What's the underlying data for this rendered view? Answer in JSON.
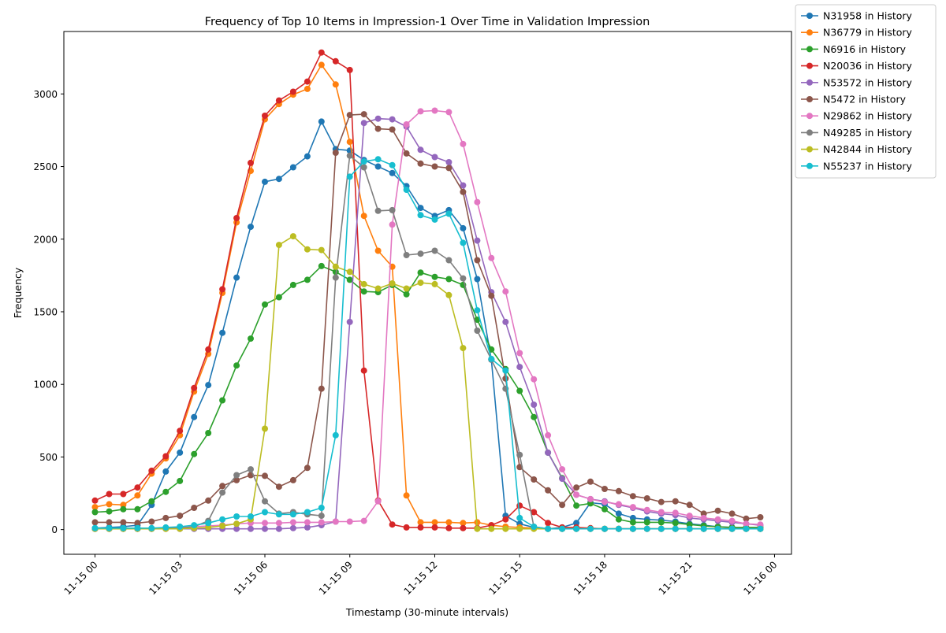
{
  "chart_data": {
    "type": "line",
    "title": "Frequency of Top 10 Items in Impression-1 Over Time in Validation Impression",
    "xlabel": "Timestamp (30-minute intervals)",
    "ylabel": "Frequency",
    "x_ticks": [
      "11-15 00",
      "11-15 03",
      "11-15 06",
      "11-15 09",
      "11-15 12",
      "11-15 15",
      "11-15 18",
      "11-15 21",
      "11-16 00"
    ],
    "x_tick_hours": [
      0,
      3,
      6,
      9,
      12,
      15,
      18,
      21,
      24
    ],
    "xlim_hours": [
      -1.1,
      24.6
    ],
    "y_ticks": [
      0,
      500,
      1000,
      1500,
      2000,
      2500,
      3000
    ],
    "ylim": [
      -170,
      3430
    ],
    "x_hours": [
      0,
      0.5,
      1,
      1.5,
      2,
      2.5,
      3,
      3.5,
      4,
      4.5,
      5,
      5.5,
      6,
      6.5,
      7,
      7.5,
      8,
      8.5,
      9,
      9.5,
      10,
      10.5,
      11,
      11.5,
      12,
      12.5,
      13,
      13.5,
      14,
      14.5,
      15,
      15.5,
      16,
      16.5,
      17,
      17.5,
      18,
      18.5,
      19,
      19.5,
      20,
      20.5,
      21,
      21.5,
      22,
      22.5,
      23,
      23.5
    ],
    "legend_position": "outside-top-right",
    "series": [
      {
        "name": "N31958 in History",
        "color": "#1f77b4",
        "values": [
          10,
          15,
          20,
          30,
          170,
          400,
          530,
          775,
          995,
          1355,
          1735,
          2085,
          2395,
          2415,
          2495,
          2570,
          2810,
          2620,
          2610,
          2545,
          2500,
          2455,
          2365,
          2215,
          2160,
          2200,
          2075,
          1725,
          1170,
          95,
          40,
          15,
          5,
          15,
          45,
          185,
          175,
          110,
          80,
          70,
          65,
          55,
          40,
          30,
          20,
          15,
          10,
          5
        ]
      },
      {
        "name": "N36779 in History",
        "color": "#ff7f0e",
        "values": [
          155,
          175,
          170,
          235,
          385,
          490,
          650,
          950,
          1210,
          1630,
          2115,
          2470,
          2825,
          2930,
          2995,
          3035,
          3200,
          3065,
          2670,
          2160,
          1920,
          1810,
          235,
          50,
          50,
          50,
          45,
          50,
          30,
          20,
          15,
          10,
          5,
          5,
          5,
          5,
          5,
          5,
          5,
          5,
          5,
          5,
          5,
          5,
          5,
          5,
          5,
          5
        ]
      },
      {
        "name": "N6916 in History",
        "color": "#2ca02c",
        "values": [
          120,
          125,
          140,
          140,
          195,
          260,
          335,
          520,
          665,
          890,
          1130,
          1315,
          1550,
          1600,
          1685,
          1720,
          1815,
          1775,
          1720,
          1640,
          1635,
          1685,
          1620,
          1770,
          1740,
          1725,
          1685,
          1445,
          1240,
          1105,
          955,
          775,
          530,
          355,
          165,
          180,
          140,
          70,
          50,
          50,
          50,
          45,
          35,
          25,
          20,
          15,
          15,
          15
        ]
      },
      {
        "name": "N20036 in History",
        "color": "#d62728",
        "values": [
          200,
          245,
          245,
          290,
          405,
          505,
          680,
          975,
          1240,
          1655,
          2145,
          2525,
          2850,
          2955,
          3015,
          3085,
          3285,
          3225,
          3165,
          1095,
          200,
          35,
          15,
          15,
          15,
          10,
          10,
          10,
          30,
          70,
          165,
          120,
          45,
          15,
          15,
          10,
          5,
          5,
          5,
          5,
          5,
          5,
          5,
          5,
          5,
          5,
          5,
          5
        ]
      },
      {
        "name": "N53572 in History",
        "color": "#9467bd",
        "values": [
          5,
          5,
          5,
          5,
          5,
          5,
          5,
          5,
          5,
          5,
          5,
          5,
          5,
          5,
          10,
          15,
          30,
          55,
          1430,
          2800,
          2830,
          2825,
          2775,
          2615,
          2565,
          2530,
          2370,
          1990,
          1635,
          1430,
          1120,
          860,
          530,
          350,
          240,
          210,
          195,
          170,
          150,
          125,
          110,
          100,
          80,
          70,
          60,
          50,
          40,
          30
        ]
      },
      {
        "name": "N5472 in History",
        "color": "#8c564b",
        "values": [
          50,
          50,
          50,
          45,
          55,
          80,
          95,
          150,
          200,
          300,
          340,
          375,
          370,
          295,
          340,
          425,
          970,
          2595,
          2855,
          2860,
          2760,
          2755,
          2590,
          2520,
          2500,
          2490,
          2325,
          1855,
          1610,
          1040,
          430,
          345,
          270,
          170,
          290,
          330,
          280,
          265,
          230,
          215,
          190,
          195,
          170,
          110,
          130,
          110,
          75,
          85
        ]
      },
      {
        "name": "N29862 in History",
        "color": "#e377c2",
        "values": [
          5,
          5,
          5,
          5,
          5,
          10,
          15,
          20,
          25,
          30,
          40,
          45,
          45,
          45,
          50,
          50,
          50,
          55,
          55,
          60,
          195,
          2100,
          2790,
          2880,
          2885,
          2875,
          2655,
          2255,
          1870,
          1640,
          1215,
          1035,
          650,
          415,
          240,
          210,
          190,
          175,
          155,
          135,
          120,
          115,
          95,
          80,
          70,
          60,
          40,
          35
        ]
      },
      {
        "name": "N49285 in History",
        "color": "#7f7f7f",
        "values": [
          5,
          5,
          5,
          5,
          5,
          10,
          10,
          20,
          60,
          255,
          375,
          415,
          195,
          110,
          120,
          105,
          95,
          1735,
          2575,
          2495,
          2195,
          2200,
          1890,
          1900,
          1920,
          1855,
          1730,
          1370,
          1170,
          970,
          515,
          20,
          5,
          5,
          5,
          5,
          5,
          5,
          5,
          5,
          5,
          5,
          5,
          5,
          5,
          5,
          5,
          5
        ]
      },
      {
        "name": "N42844 in History",
        "color": "#bcbd22",
        "values": [
          5,
          5,
          5,
          5,
          5,
          5,
          5,
          10,
          15,
          25,
          40,
          70,
          695,
          1960,
          2020,
          1930,
          1925,
          1810,
          1775,
          1690,
          1660,
          1695,
          1660,
          1700,
          1690,
          1615,
          1250,
          5,
          5,
          5,
          5,
          5,
          5,
          5,
          5,
          5,
          5,
          5,
          5,
          5,
          5,
          5,
          5,
          5,
          5,
          5,
          5,
          5
        ]
      },
      {
        "name": "N55237 in History",
        "color": "#17becf",
        "values": [
          10,
          10,
          10,
          10,
          10,
          15,
          20,
          30,
          45,
          70,
          90,
          90,
          120,
          105,
          105,
          120,
          150,
          650,
          2430,
          2535,
          2550,
          2510,
          2340,
          2165,
          2135,
          2175,
          1975,
          1510,
          1175,
          1095,
          80,
          20,
          5,
          5,
          5,
          5,
          5,
          5,
          5,
          5,
          5,
          5,
          5,
          5,
          5,
          5,
          5,
          5
        ]
      }
    ]
  }
}
